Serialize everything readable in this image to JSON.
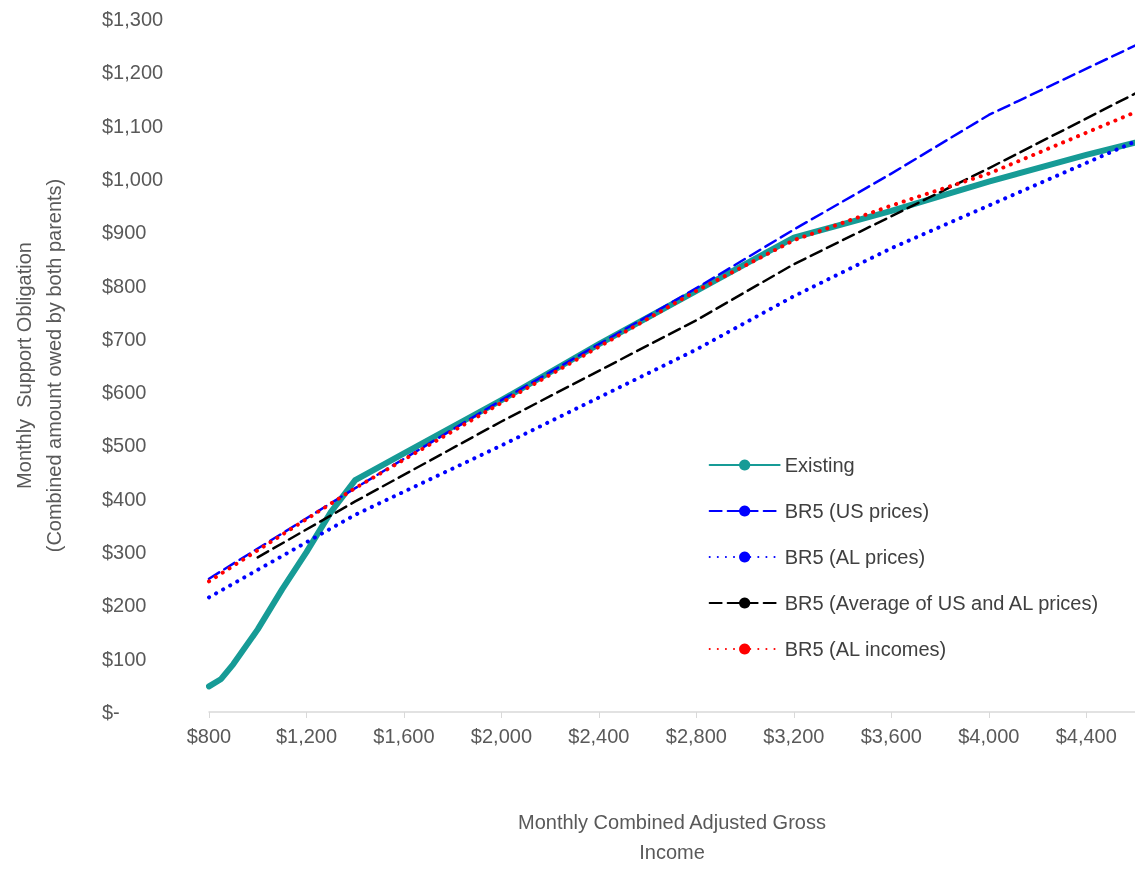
{
  "chart_data": {
    "type": "line",
    "xlabel": "Monthly Combined Adjusted Gross\nIncome",
    "ylabel": "Monthly  Support Obligation\n(Combined amount owed by both parents)",
    "xlim": [
      800,
      4600
    ],
    "xticks": [
      {
        "value": 800,
        "label": "$800"
      },
      {
        "value": 1200,
        "label": "$1,200"
      },
      {
        "value": 1600,
        "label": "$1,600"
      },
      {
        "value": 2000,
        "label": "$2,000"
      },
      {
        "value": 2400,
        "label": "$2,400"
      },
      {
        "value": 2800,
        "label": "$2,800"
      },
      {
        "value": 3200,
        "label": "$3,200"
      },
      {
        "value": 3600,
        "label": "$3,600"
      },
      {
        "value": 4000,
        "label": "$4,000"
      },
      {
        "value": 4400,
        "label": "$4,400"
      }
    ],
    "ylim": [
      0,
      1300
    ],
    "yticks": [
      {
        "value": 0,
        "label": "$-"
      },
      {
        "value": 100,
        "label": "$100"
      },
      {
        "value": 200,
        "label": "$200"
      },
      {
        "value": 300,
        "label": "$300"
      },
      {
        "value": 400,
        "label": "$400"
      },
      {
        "value": 500,
        "label": "$500"
      },
      {
        "value": 600,
        "label": "$600"
      },
      {
        "value": 700,
        "label": "$700"
      },
      {
        "value": 800,
        "label": "$800"
      },
      {
        "value": 900,
        "label": "$900"
      },
      {
        "value": 1000,
        "label": "$1,000"
      },
      {
        "value": 1100,
        "label": "$1,100"
      },
      {
        "value": 1200,
        "label": "$1,200"
      },
      {
        "value": 1300,
        "label": "$1,300"
      }
    ],
    "grid": false,
    "legend": "bottom right",
    "marker": "none",
    "series": [
      {
        "name": "Existing",
        "color": "#169b96",
        "line_style": "solid",
        "x": [
          800,
          850,
          900,
          1000,
          1100,
          1200,
          1300,
          1400,
          1600,
          2000,
          2400,
          2800,
          3200,
          3600,
          4000,
          4400,
          4600
        ],
        "values": [
          48,
          62,
          90,
          155,
          230,
          300,
          375,
          435,
          485,
          585,
          690,
          790,
          890,
          940,
          995,
          1045,
          1068
        ]
      },
      {
        "name": "BR5 (US prices)",
        "color": "#0000ff",
        "line_style": "dashed",
        "x": [
          800,
          1400,
          2000,
          2800,
          3200,
          3600,
          4000,
          4600
        ],
        "values": [
          250,
          420,
          585,
          795,
          905,
          1010,
          1120,
          1250
        ]
      },
      {
        "name": "BR5 (AL prices)",
        "color": "#0000ff",
        "line_style": "dotted",
        "x": [
          800,
          1400,
          2000,
          2800,
          3200,
          3600,
          4000,
          4600
        ],
        "values": [
          215,
          370,
          500,
          680,
          780,
          870,
          950,
          1070
        ]
      },
      {
        "name": "BR5 (Average of US and AL prices)",
        "color": "#000000",
        "line_style": "dashed",
        "x": [
          1000,
          1400,
          2000,
          2400,
          2800,
          3200,
          3600,
          4000,
          4600
        ],
        "values": [
          290,
          395,
          545,
          640,
          735,
          840,
          930,
          1020,
          1160
        ]
      },
      {
        "name": "BR5 (AL incomes)",
        "color": "#ff0000",
        "line_style": "dotted",
        "x": [
          800,
          1400,
          2000,
          2800,
          3200,
          3600,
          4000,
          4600
        ],
        "values": [
          245,
          420,
          580,
          790,
          885,
          950,
          1010,
          1125
        ]
      }
    ]
  }
}
